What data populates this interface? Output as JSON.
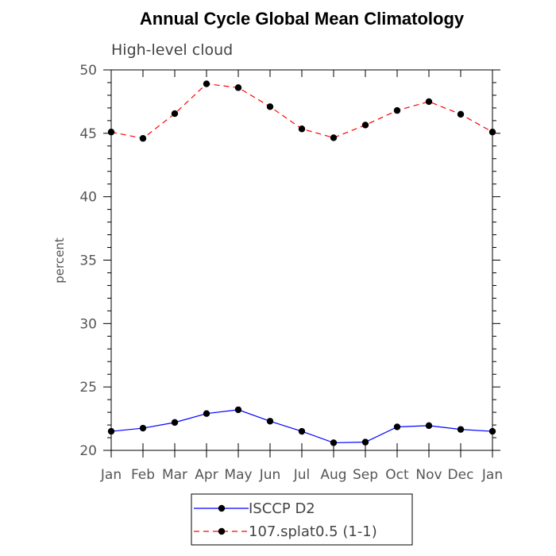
{
  "chart_data": {
    "type": "line",
    "title": "Annual Cycle Global Mean Climatology",
    "subtitle": "High-level cloud",
    "xlabel": "",
    "ylabel": "percent",
    "categories": [
      "Jan",
      "Feb",
      "Mar",
      "Apr",
      "May",
      "Jun",
      "Jul",
      "Aug",
      "Sep",
      "Oct",
      "Nov",
      "Dec",
      "Jan"
    ],
    "ylim": [
      20,
      50
    ],
    "yticks": [
      20,
      25,
      30,
      35,
      40,
      45,
      50
    ],
    "grid": false,
    "legend_position": "bottom",
    "series": [
      {
        "name": "ISCCP D2",
        "color": "#0000ff",
        "line_style": "solid",
        "marker": "filled-circle",
        "values": [
          21.5,
          21.75,
          22.2,
          22.9,
          23.2,
          22.3,
          21.5,
          20.6,
          20.65,
          21.85,
          21.95,
          21.65,
          21.5
        ]
      },
      {
        "name": "107.splat0.5 (1-1)",
        "color": "#ff0000",
        "line_style": "dashed",
        "marker": "filled-circle",
        "values": [
          45.1,
          44.6,
          46.55,
          48.9,
          48.6,
          47.1,
          45.35,
          44.65,
          45.65,
          46.8,
          47.5,
          46.5,
          45.1
        ]
      }
    ]
  }
}
